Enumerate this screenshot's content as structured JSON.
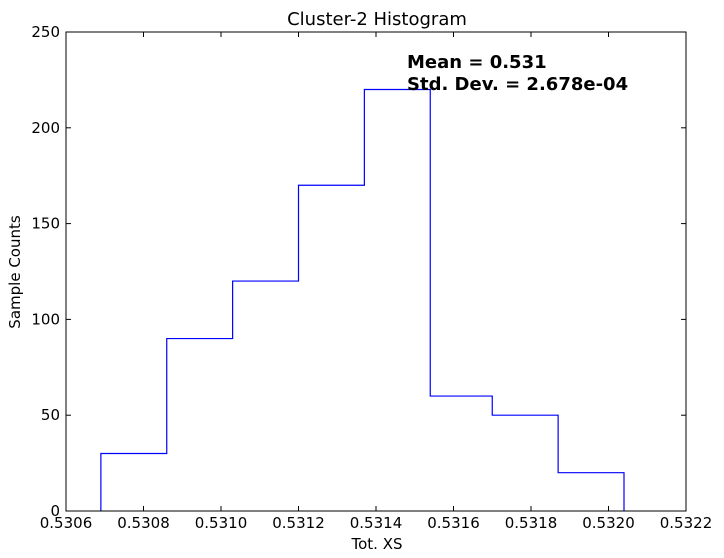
{
  "chart_data": {
    "type": "histogram",
    "title": "Cluster-2 Histogram",
    "xlabel": "Tot. XS",
    "ylabel": "Sample Counts",
    "xlim": [
      0.5306,
      0.5322
    ],
    "ylim": [
      0,
      250
    ],
    "xticks": [
      "0.5306",
      "0.5308",
      "0.5310",
      "0.5312",
      "0.5314",
      "0.5316",
      "0.5318",
      "0.5320",
      "0.5322"
    ],
    "yticks": [
      "0",
      "50",
      "100",
      "150",
      "200",
      "250"
    ],
    "bin_edges": [
      0.53069,
      0.53086,
      0.53103,
      0.5312,
      0.53137,
      0.53154,
      0.5317,
      0.53187,
      0.53204
    ],
    "counts": [
      30,
      90,
      120,
      170,
      220,
      60,
      50,
      20
    ],
    "line_color": "#0000ff",
    "grid": false,
    "annotations": {
      "mean": "Mean = 0.531",
      "std": "Std. Dev. = 2.678e-04"
    }
  }
}
